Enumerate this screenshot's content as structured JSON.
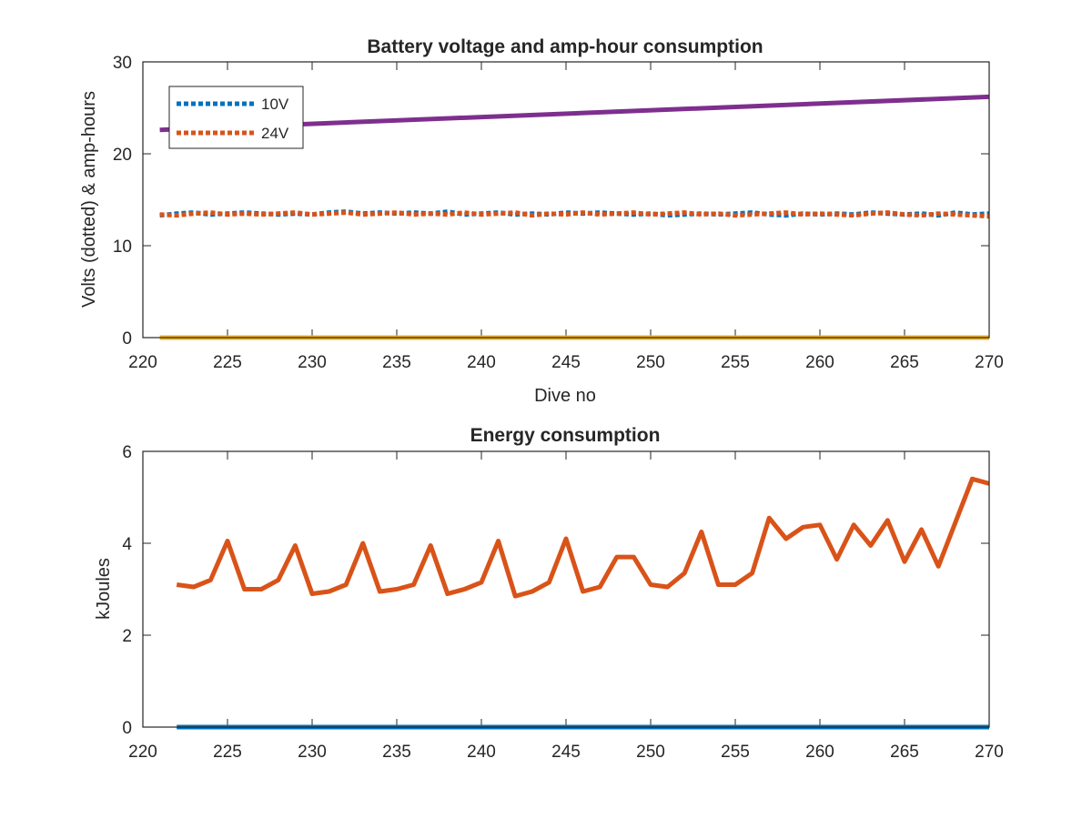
{
  "chart_data": [
    {
      "type": "line",
      "title": "Battery voltage and amp-hour consumption",
      "xlabel": "Dive no",
      "ylabel": "Volts (dotted) & amp-hours",
      "xlim": [
        220,
        270
      ],
      "ylim": [
        0,
        30
      ],
      "xticks": [
        "220",
        "225",
        "230",
        "235",
        "240",
        "245",
        "250",
        "255",
        "260",
        "265",
        "270"
      ],
      "yticks": [
        "0",
        "10",
        "20",
        "30"
      ],
      "legend": {
        "placement": "top-left",
        "entries": [
          "10V",
          "24V"
        ]
      },
      "series": [
        {
          "name": "10V",
          "style": "dotted",
          "color": "#0072BD",
          "x": [
            221,
            222,
            223,
            224,
            225,
            226,
            227,
            228,
            229,
            230,
            231,
            232,
            233,
            234,
            235,
            236,
            237,
            238,
            239,
            240,
            241,
            242,
            243,
            244,
            245,
            246,
            247,
            248,
            249,
            250,
            251,
            252,
            253,
            254,
            255,
            256,
            257,
            258,
            259,
            260,
            261,
            262,
            263,
            264,
            265,
            266,
            267,
            268,
            269,
            270
          ],
          "y": [
            13.3,
            13.5,
            13.6,
            13.4,
            13.5,
            13.6,
            13.5,
            13.4,
            13.5,
            13.4,
            13.6,
            13.7,
            13.5,
            13.6,
            13.5,
            13.6,
            13.5,
            13.7,
            13.4,
            13.5,
            13.6,
            13.4,
            13.5,
            13.4,
            13.6,
            13.5,
            13.6,
            13.5,
            13.4,
            13.5,
            13.3,
            13.4,
            13.5,
            13.4,
            13.5,
            13.6,
            13.4,
            13.3,
            13.5,
            13.4,
            13.5,
            13.4,
            13.6,
            13.5,
            13.4,
            13.5,
            13.3,
            13.6,
            13.4,
            13.5
          ]
        },
        {
          "name": "24V",
          "style": "dotted",
          "color": "#D95319",
          "x": [
            221,
            222,
            223,
            224,
            225,
            226,
            227,
            228,
            229,
            230,
            231,
            232,
            233,
            234,
            235,
            236,
            237,
            238,
            239,
            240,
            241,
            242,
            243,
            244,
            245,
            246,
            247,
            248,
            249,
            250,
            251,
            252,
            253,
            254,
            255,
            256,
            257,
            258,
            259,
            260,
            261,
            262,
            263,
            264,
            265,
            266,
            267,
            268,
            269,
            270
          ],
          "y": [
            13.4,
            13.3,
            13.5,
            13.6,
            13.4,
            13.5,
            13.4,
            13.5,
            13.6,
            13.4,
            13.5,
            13.6,
            13.4,
            13.5,
            13.6,
            13.4,
            13.5,
            13.4,
            13.6,
            13.4,
            13.5,
            13.6,
            13.3,
            13.5,
            13.4,
            13.6,
            13.4,
            13.5,
            13.6,
            13.4,
            13.5,
            13.6,
            13.4,
            13.5,
            13.3,
            13.4,
            13.5,
            13.6,
            13.4,
            13.5,
            13.4,
            13.3,
            13.5,
            13.6,
            13.4,
            13.3,
            13.5,
            13.4,
            13.3,
            13.2
          ]
        },
        {
          "color": "#7E2F8E",
          "style": "solid",
          "x": [
            221,
            270
          ],
          "y": [
            22.6,
            26.2
          ]
        },
        {
          "color": "#EDB120",
          "style": "solid",
          "x": [
            221,
            270
          ],
          "y": [
            0,
            0
          ]
        }
      ]
    },
    {
      "type": "line",
      "title": "Energy consumption",
      "xlabel": "",
      "ylabel": "kJoules",
      "xlim": [
        220,
        270
      ],
      "ylim": [
        0,
        6
      ],
      "xticks": [
        "220",
        "225",
        "230",
        "235",
        "240",
        "245",
        "250",
        "255",
        "260",
        "265",
        "270"
      ],
      "yticks": [
        "0",
        "2",
        "4",
        "6"
      ],
      "series": [
        {
          "color": "#0072BD",
          "style": "solid",
          "x": [
            222,
            270
          ],
          "y": [
            0,
            0
          ]
        },
        {
          "color": "#D95319",
          "style": "solid",
          "x": [
            222,
            223,
            224,
            225,
            226,
            227,
            228,
            229,
            230,
            231,
            232,
            233,
            234,
            235,
            236,
            237,
            238,
            239,
            240,
            241,
            242,
            243,
            244,
            245,
            246,
            247,
            248,
            249,
            250,
            251,
            252,
            253,
            254,
            255,
            256,
            257,
            258,
            259,
            260,
            261,
            262,
            263,
            264,
            265,
            266,
            267,
            268,
            269,
            270
          ],
          "y": [
            3.1,
            3.05,
            3.2,
            4.05,
            3.0,
            3.0,
            3.2,
            3.95,
            2.9,
            2.95,
            3.1,
            4.0,
            2.95,
            3.0,
            3.1,
            3.95,
            2.9,
            3.0,
            3.15,
            4.05,
            2.85,
            2.95,
            3.15,
            4.1,
            2.95,
            3.05,
            3.7,
            3.7,
            3.1,
            3.05,
            3.35,
            4.25,
            3.1,
            3.1,
            3.35,
            4.55,
            4.1,
            4.35,
            4.4,
            3.65,
            4.4,
            3.95,
            4.5,
            3.6,
            4.3,
            3.5,
            4.45,
            5.4,
            5.3
          ]
        }
      ]
    }
  ]
}
